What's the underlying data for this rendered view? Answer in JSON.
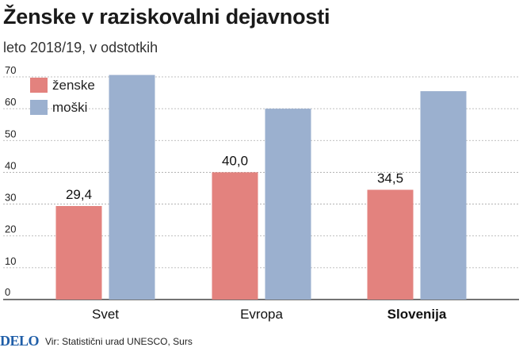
{
  "header": {
    "title": "Ženske v raziskovalni dejavnosti",
    "subtitle": "leto 2018/19, v odstotkih"
  },
  "footer": {
    "logo": "DELO",
    "source": "Vir: Statistični urad UNESCO, Surs"
  },
  "chart_data": {
    "type": "bar",
    "title": "Ženske v raziskovalni dejavnosti",
    "subtitle": "leto 2018/19, v odstotkih",
    "categories": [
      "Svet",
      "Evropa",
      "Slovenija"
    ],
    "series": [
      {
        "name": "ženske",
        "values": [
          29.4,
          40.0,
          34.5
        ],
        "labels": [
          "29,4",
          "40,0",
          "34,5"
        ],
        "color": "#e3827e"
      },
      {
        "name": "moški",
        "values": [
          70.6,
          60.0,
          65.5
        ],
        "color": "#9bb0cf"
      }
    ],
    "ylim": [
      0,
      70
    ],
    "yticks": [
      0,
      10,
      20,
      30,
      40,
      50,
      60,
      70
    ],
    "grid": true,
    "legend": "top-left"
  }
}
